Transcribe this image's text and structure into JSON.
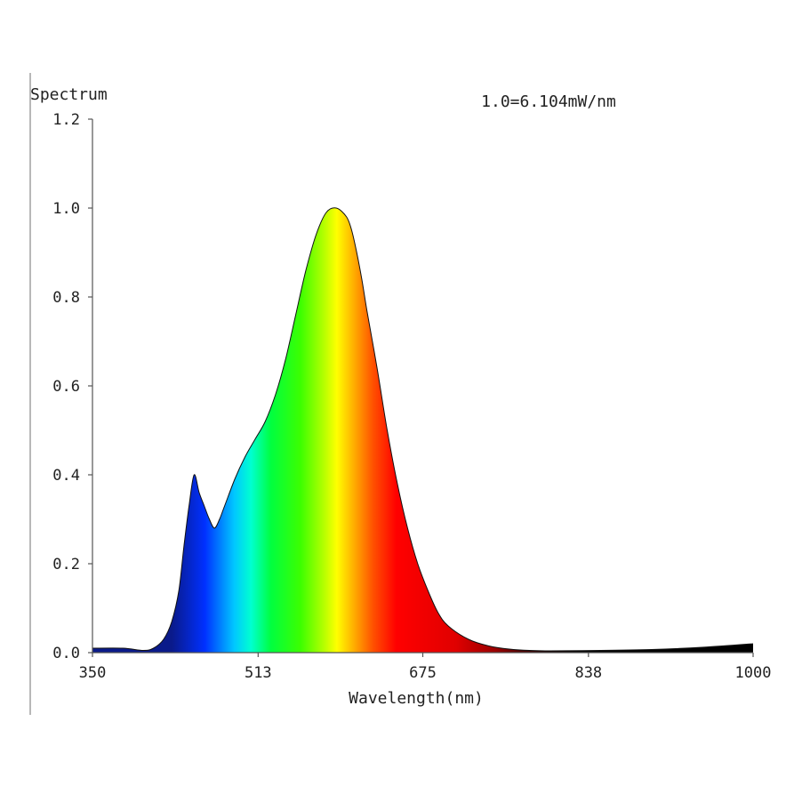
{
  "chart_data": {
    "type": "area",
    "title": "",
    "ylabel": "Spectrum",
    "xlabel": "Wavelength(nm)",
    "annotation": "1.0=6.104mW/nm",
    "xlim": [
      350,
      1000
    ],
    "ylim": [
      0,
      1.2
    ],
    "x_ticks": [
      350,
      513,
      675,
      838,
      1000
    ],
    "y_ticks": [
      "0.0",
      "0.2",
      "0.4",
      "0.6",
      "0.8",
      "1.0",
      "1.2"
    ],
    "grid": false,
    "legend": "none",
    "series": [
      {
        "x": [
          350,
          380,
          400,
          410,
          420,
          428,
          435,
          440,
          445,
          450,
          455,
          460,
          465,
          470,
          475,
          480,
          490,
          500,
          510,
          520,
          530,
          540,
          550,
          560,
          570,
          580,
          590,
          600,
          605,
          610,
          615,
          620,
          630,
          640,
          650,
          660,
          670,
          680,
          690,
          700,
          720,
          740,
          760,
          780,
          800,
          850,
          900,
          950,
          1000
        ],
        "values": [
          0.01,
          0.01,
          0.005,
          0.01,
          0.03,
          0.07,
          0.14,
          0.24,
          0.33,
          0.4,
          0.36,
          0.33,
          0.3,
          0.28,
          0.3,
          0.33,
          0.39,
          0.44,
          0.48,
          0.52,
          0.58,
          0.66,
          0.76,
          0.86,
          0.94,
          0.99,
          1.0,
          0.98,
          0.95,
          0.9,
          0.84,
          0.77,
          0.64,
          0.5,
          0.38,
          0.28,
          0.2,
          0.14,
          0.09,
          0.06,
          0.03,
          0.015,
          0.008,
          0.005,
          0.004,
          0.005,
          0.007,
          0.012,
          0.02
        ]
      }
    ]
  }
}
